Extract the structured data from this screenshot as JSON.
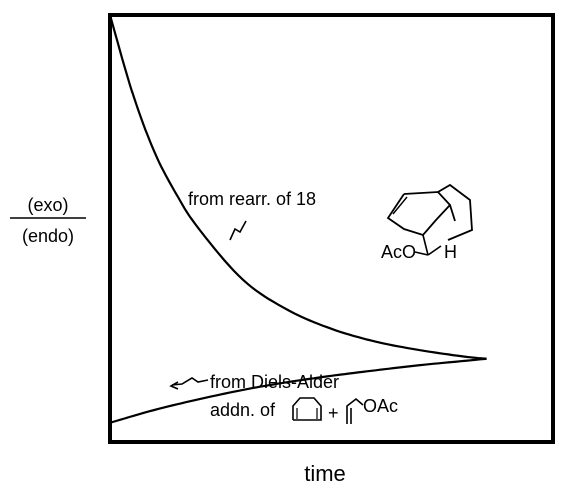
{
  "chart_data": {
    "type": "line",
    "ylabel_numerator": "(exo)",
    "ylabel_denominator": "(endo)",
    "xlabel": "time",
    "x_ticks": [],
    "y_ticks": [],
    "grid": false,
    "series": [
      {
        "label_line1": "from rearr. of 18",
        "x": [
          0.0,
          0.05,
          0.1,
          0.15,
          0.2,
          0.3,
          0.4,
          0.5,
          0.6,
          0.7,
          0.8,
          0.85
        ],
        "y": [
          1.0,
          0.82,
          0.68,
          0.58,
          0.5,
          0.38,
          0.31,
          0.265,
          0.235,
          0.215,
          0.2,
          0.195
        ]
      },
      {
        "label_line1": "from Diels-Alder",
        "label_line2": "addn. of",
        "label_plus": "+",
        "label_reagent": "OAc",
        "x": [
          0.0,
          0.1,
          0.2,
          0.3,
          0.4,
          0.5,
          0.6,
          0.7,
          0.8,
          0.85
        ],
        "y": [
          0.045,
          0.075,
          0.1,
          0.122,
          0.14,
          0.155,
          0.168,
          0.18,
          0.19,
          0.195
        ]
      }
    ]
  },
  "structure_labels": {
    "acyl": "AcO",
    "hydrogen": "H"
  }
}
